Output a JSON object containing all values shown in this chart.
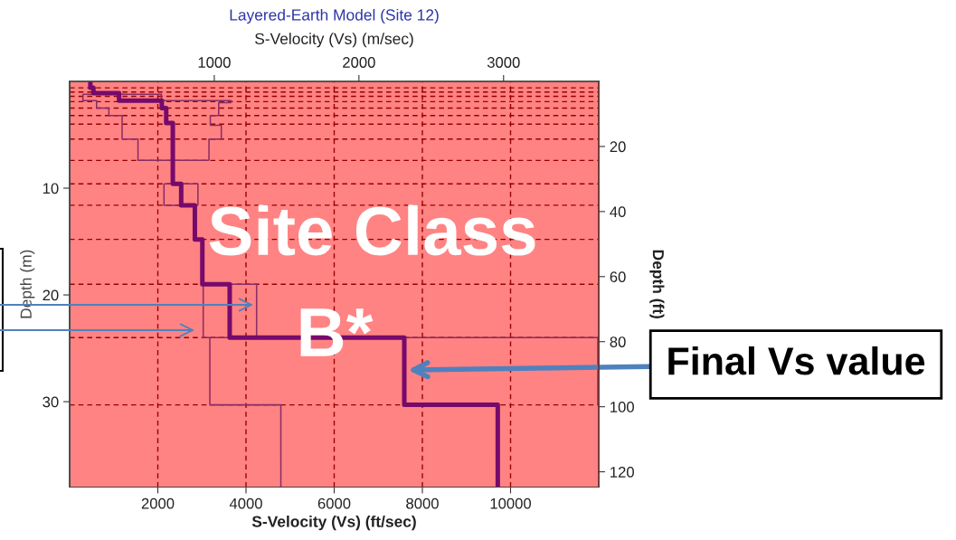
{
  "chart_data": {
    "type": "line",
    "title": "Layered-Earth Model (Site 12)",
    "xlabel": "S-Velocity (Vs) (ft/sec)",
    "x2label": "S-Velocity (Vs) (m/sec)",
    "ylabel": "Depth (m)",
    "y2label": "Depth (ft)",
    "xlim": [
      0,
      12000
    ],
    "xticks": [
      2000,
      4000,
      6000,
      8000,
      10000
    ],
    "x2lim": [
      0,
      3658
    ],
    "x2ticks": [
      1000,
      2000,
      3000
    ],
    "ylim": [
      38,
      0
    ],
    "yticks": [
      10,
      20,
      30
    ],
    "y2lim": [
      124.7,
      0
    ],
    "y2ticks": [
      20,
      40,
      60,
      80,
      100,
      120
    ],
    "grid": "x",
    "ref_lines": [
      {
        "axis": "y",
        "value": 0.6,
        "color": "#990000",
        "line_style": "dashed"
      },
      {
        "axis": "y",
        "value": 1.0,
        "color": "#990000",
        "line_style": "dashed"
      },
      {
        "axis": "y",
        "value": 1.4,
        "color": "#990000",
        "line_style": "dashed"
      },
      {
        "axis": "y",
        "value": 1.9,
        "color": "#990000",
        "line_style": "dashed"
      },
      {
        "axis": "y",
        "value": 2.5,
        "color": "#990000",
        "line_style": "dashed"
      },
      {
        "axis": "y",
        "value": 3.2,
        "color": "#990000",
        "line_style": "dashed"
      },
      {
        "axis": "y",
        "value": 4.0,
        "color": "#990000",
        "line_style": "dashed"
      },
      {
        "axis": "y",
        "value": 5.4,
        "color": "#990000",
        "line_style": "dashed"
      },
      {
        "axis": "y",
        "value": 7.4,
        "color": "#990000",
        "line_style": "dashed"
      },
      {
        "axis": "y",
        "value": 9.6,
        "color": "#990000",
        "line_style": "dashed"
      },
      {
        "axis": "y",
        "value": 11.6,
        "color": "#990000",
        "line_style": "dashed"
      },
      {
        "axis": "y",
        "value": 14.8,
        "color": "#990000",
        "line_style": "dashed"
      },
      {
        "axis": "y",
        "value": 19.0,
        "color": "#990000",
        "line_style": "dashed"
      },
      {
        "axis": "y",
        "value": 24.0,
        "color": "#990000",
        "line_style": "dashed"
      },
      {
        "axis": "y",
        "value": 30.3,
        "color": "#990000",
        "line_style": "dashed"
      }
    ],
    "series": [
      {
        "color": "#760a6c",
        "x": [
          470,
          470,
          540,
          540,
          1120,
          1120,
          2090,
          2090,
          2190,
          2190,
          2340,
          2340,
          2530,
          2530,
          2840,
          2840,
          3010,
          3010,
          3630,
          3630,
          7590,
          7590,
          9710,
          9710
        ],
        "values": [
          0,
          0.6,
          0.6,
          1.1,
          1.1,
          1.8,
          1.8,
          2.5,
          2.5,
          3.9,
          3.9,
          9.6,
          9.6,
          11.6,
          11.6,
          14.8,
          14.8,
          19.0,
          19.0,
          24.0,
          24.0,
          30.3,
          30.3,
          38
        ]
      },
      {
        "color": "#8a2d63",
        "x": [
          300,
          300,
          610,
          610,
          890,
          890,
          1190,
          1190,
          1550,
          1550,
          3160
        ],
        "values": [
          1.2,
          1.8,
          1.8,
          2.5,
          2.5,
          3.2,
          3.2,
          5.4,
          5.4,
          7.4,
          7.4
        ]
      },
      {
        "color": "#8a2d63",
        "x": [
          300,
          2080,
          2080,
          3660,
          3660
        ],
        "values": [
          1.2,
          1.2,
          1.8,
          1.8,
          2.0
        ]
      },
      {
        "color": "#8a2d63",
        "x": [
          3190,
          3190,
          3380,
          3380,
          3660
        ],
        "values": [
          4.1,
          3.2,
          3.2,
          2.0,
          2.0
        ]
      },
      {
        "color": "#8a2d63",
        "x": [
          3190,
          3440,
          3440
        ],
        "values": [
          4.1,
          4.1,
          5.4
        ]
      },
      {
        "color": "#8a2d63",
        "x": [
          3160,
          3160,
          3440
        ],
        "values": [
          7.4,
          5.4,
          5.4
        ]
      },
      {
        "color": "#8a2d63",
        "x": [
          2140,
          2910,
          2910
        ],
        "values": [
          9.6,
          9.6,
          11.6
        ]
      },
      {
        "color": "#8a2d63",
        "x": [
          2140,
          2140,
          2910
        ],
        "values": [
          9.6,
          11.6,
          11.6
        ]
      },
      {
        "color": "#8a2d63",
        "x": [
          3030,
          4240,
          4240
        ],
        "values": [
          19.0,
          19.0,
          24.0
        ]
      },
      {
        "color": "#8a2d63",
        "x": [
          3030,
          3030,
          11980,
          11980,
          12000
        ],
        "values": [
          19.0,
          24.0,
          24.0,
          30.3,
          30.3
        ]
      },
      {
        "color": "#8a2d63",
        "x": [
          3180,
          3180,
          4790,
          4790
        ],
        "values": [
          24.0,
          30.3,
          30.3,
          38
        ]
      }
    ],
    "annotations": [
      "Site Class",
      "B*",
      "Final Vs value"
    ]
  }
}
